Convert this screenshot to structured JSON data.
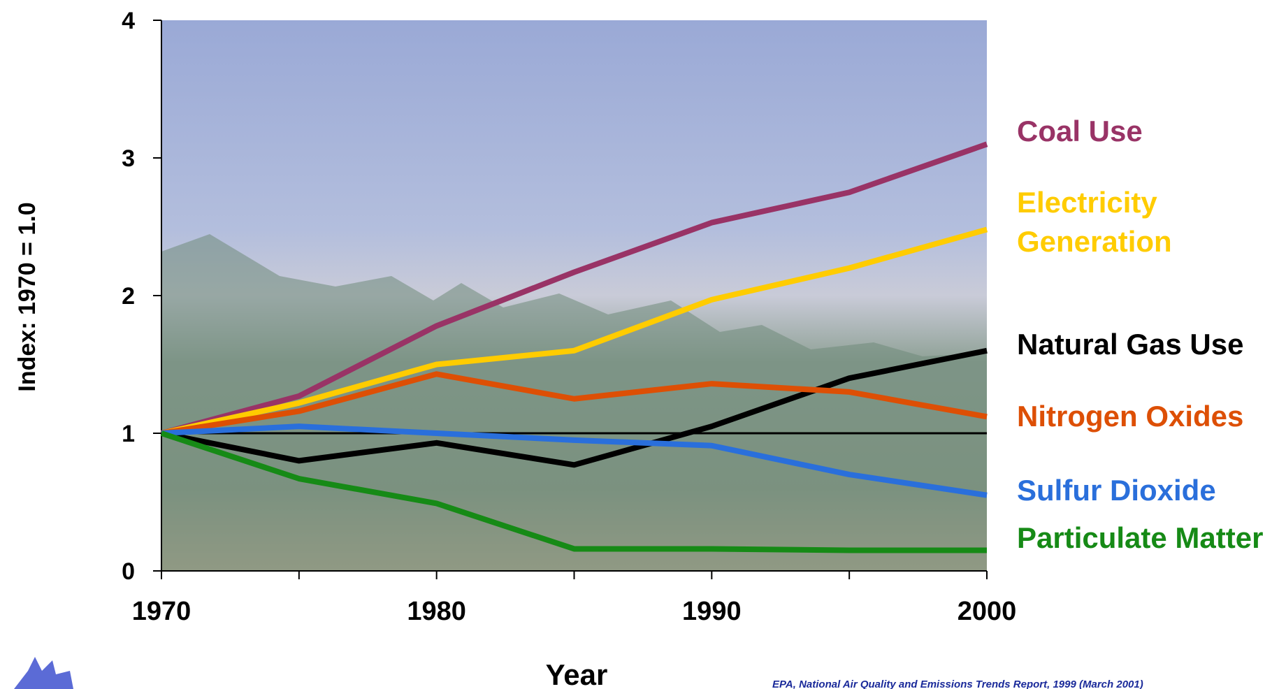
{
  "chart_data": {
    "type": "line",
    "y_label": "Index:  1970 = 1.0",
    "x_label": "Year",
    "source": "EPA, National Air Quality and Emissions Trends Report, 1999 (March 2001)",
    "x": [
      1970,
      1975,
      1980,
      1985,
      1990,
      1995,
      2000
    ],
    "xlim": [
      1970,
      2000
    ],
    "xticks": [
      1970,
      1980,
      1990,
      2000
    ],
    "ylim": [
      0,
      4
    ],
    "yticks": [
      0,
      1,
      2,
      3,
      4
    ],
    "reference_line": 1,
    "series": [
      {
        "name": "Coal Use",
        "color": "#993366",
        "values": [
          1,
          1.27,
          1.78,
          2.17,
          2.53,
          2.75,
          3.1
        ]
      },
      {
        "name": "Electricity Generation",
        "color": "#ffcc00",
        "values": [
          1,
          1.22,
          1.5,
          1.6,
          1.97,
          2.2,
          2.48
        ]
      },
      {
        "name": "Natural Gas Use",
        "color": "#000000",
        "values": [
          1,
          0.8,
          0.93,
          0.77,
          1.05,
          1.4,
          1.6
        ]
      },
      {
        "name": "Nitrogen Oxides",
        "color": "#dd4f05",
        "values": [
          1,
          1.16,
          1.43,
          1.25,
          1.36,
          1.3,
          1.12
        ]
      },
      {
        "name": "Sulfur Dioxide",
        "color": "#2a6fdb",
        "values": [
          1,
          1.05,
          1.0,
          0.95,
          0.91,
          0.7,
          0.55
        ]
      },
      {
        "name": "Particulate Matter",
        "color": "#168a16",
        "values": [
          1,
          0.67,
          0.49,
          0.16,
          0.16,
          0.15,
          0.15
        ]
      }
    ]
  }
}
